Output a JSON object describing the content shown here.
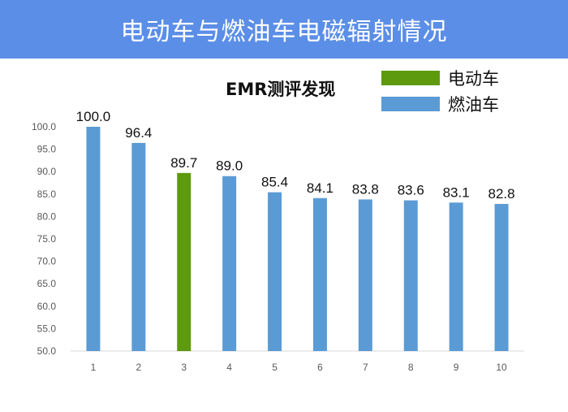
{
  "title": "电动车与燃油车电磁辐射情况",
  "colors": {
    "banner": "#5b8ee6",
    "fuel": "#5b9bd5",
    "electric": "#5e9a0d"
  },
  "legend": [
    {
      "label": "电动车",
      "color": "#5e9a0d"
    },
    {
      "label": "燃油车",
      "color": "#5b9bd5"
    }
  ],
  "chart_data": {
    "type": "bar",
    "title": "EMR测评发现",
    "categories": [
      "1",
      "2",
      "3",
      "4",
      "5",
      "6",
      "7",
      "8",
      "9",
      "10"
    ],
    "values": [
      100.0,
      96.4,
      89.7,
      89.0,
      85.4,
      84.1,
      83.8,
      83.6,
      83.1,
      82.8
    ],
    "bar_labels": [
      "100.0",
      "96.4",
      "89.7",
      "89.0",
      "85.4",
      "84.1",
      "83.8",
      "83.6",
      "83.1",
      "82.8"
    ],
    "series_of_bar": [
      "燃油车",
      "燃油车",
      "电动车",
      "燃油车",
      "燃油车",
      "燃油车",
      "燃油车",
      "燃油车",
      "燃油车",
      "燃油车"
    ],
    "ylim": [
      50,
      100
    ],
    "yticks": [
      "50.0",
      "55.0",
      "60.0",
      "65.0",
      "70.0",
      "75.0",
      "80.0",
      "85.0",
      "90.0",
      "95.0",
      "100.0"
    ],
    "grid": false,
    "legend_position": "top-right"
  }
}
